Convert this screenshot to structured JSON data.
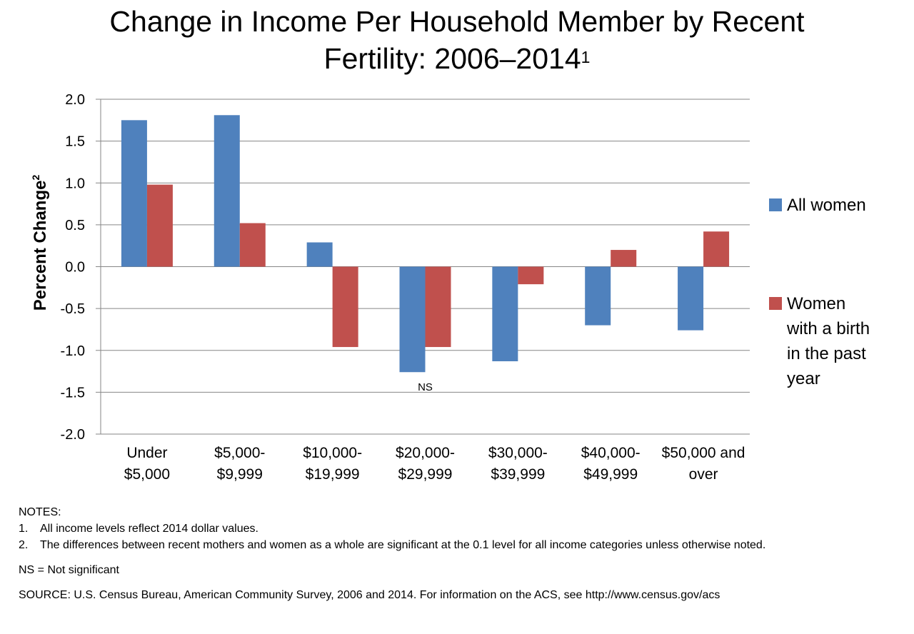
{
  "title_line1": "Change in Income Per Household Member by Recent",
  "title_line2": "Fertility: 2006–2014",
  "title_sup": "1",
  "chart_data": {
    "type": "bar",
    "ylabel": "Percent Change",
    "ylabel_sup": "2",
    "ylim": [
      -2.0,
      2.0
    ],
    "yticks": [
      "2.0",
      "1.5",
      "1.0",
      "0.5",
      "0.0",
      "-0.5",
      "-1.0",
      "-1.5",
      "-2.0"
    ],
    "grid": true,
    "legend_position": "right",
    "categories": [
      [
        "Under",
        "$5,000"
      ],
      [
        "$5,000-",
        "$9,999"
      ],
      [
        "$10,000-",
        "$19,999"
      ],
      [
        "$20,000-",
        "$29,999"
      ],
      [
        "$30,000-",
        "$39,999"
      ],
      [
        "$40,000-",
        "$49,999"
      ],
      [
        "$50,000 and",
        "over"
      ]
    ],
    "series": [
      {
        "name": "All women",
        "legend_lines": [
          "All women"
        ],
        "color": "#4f81bd",
        "values": [
          1.75,
          1.81,
          0.29,
          -1.26,
          -1.13,
          -0.7,
          -0.76
        ]
      },
      {
        "name": "Women with a birth in the past year",
        "legend_lines": [
          "Women",
          "with a birth",
          "in the past",
          "year"
        ],
        "color": "#c0504d",
        "values": [
          0.98,
          0.52,
          -0.96,
          -0.96,
          -0.21,
          0.2,
          0.42
        ]
      }
    ],
    "annotations": [
      {
        "category_index": 3,
        "text": "NS"
      }
    ]
  },
  "notes": {
    "heading": "NOTES:",
    "items": [
      {
        "num": "1.",
        "text": "All income levels reflect 2014 dollar values."
      },
      {
        "num": "2.",
        "text": "The differences between recent mothers and women as a whole are significant at the 0.1 level for all income categories unless otherwise noted."
      }
    ],
    "ns": "NS = Not significant",
    "source": "SOURCE: U.S. Census Bureau, American Community Survey, 2006 and 2014. For information on the ACS, see http://www.census.gov/acs"
  }
}
